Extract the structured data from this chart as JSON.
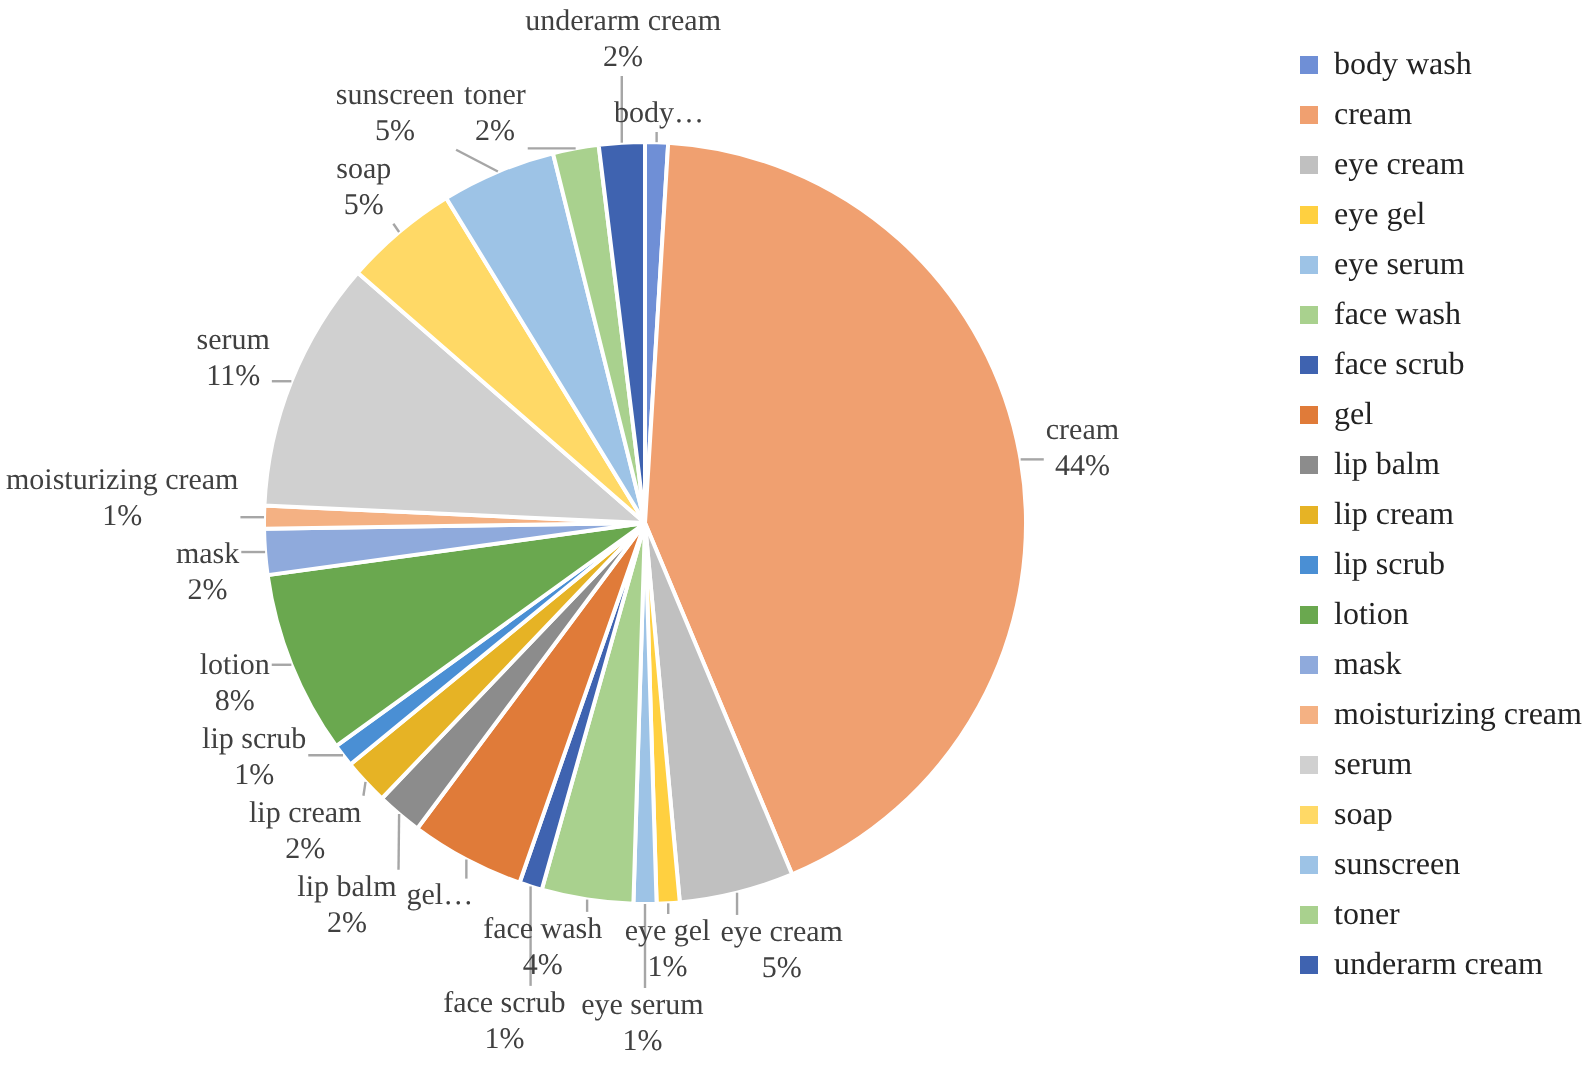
{
  "chart_data": {
    "type": "pie",
    "legend": "right",
    "categories": [
      "body wash",
      "cream",
      "eye cream",
      "eye gel",
      "eye serum",
      "face wash",
      "face scrub",
      "gel",
      "lip balm",
      "lip cream",
      "lip scrub",
      "lotion",
      "mask",
      "moisturizing cream",
      "serum",
      "soap",
      "sunscreen",
      "toner",
      "underarm cream"
    ],
    "values": [
      1,
      44,
      5,
      1,
      1,
      4,
      1,
      5,
      2,
      2,
      1,
      8,
      2,
      1,
      11,
      5,
      5,
      2,
      2
    ],
    "value_labels": [
      "body…",
      "cream\n44%",
      "eye cream\n5%",
      "eye gel\n1%",
      "eye serum\n1%",
      "face wash\n4%",
      "face scrub\n1%",
      "gel…",
      "lip balm\n2%",
      "lip cream\n2%",
      "lip scrub\n1%",
      "lotion\n8%",
      "mask\n2%",
      "moisturizing cream\n1%",
      "serum\n11%",
      "soap\n5%",
      "sunscreen\n5%",
      "toner\n2%",
      "underarm cream\n2%"
    ],
    "colors": [
      "#6f8fd6",
      "#f0a070",
      "#c0c0c0",
      "#ffd040",
      "#9dc3e6",
      "#a9d18e",
      "#3f63b0",
      "#e07b39",
      "#8c8c8c",
      "#e6b325",
      "#4a8fd4",
      "#6aa84f",
      "#8faadc",
      "#f4b183",
      "#d0d0d0",
      "#ffd966",
      "#9dc3e6",
      "#a9d18e",
      "#3f63b0"
    ]
  }
}
